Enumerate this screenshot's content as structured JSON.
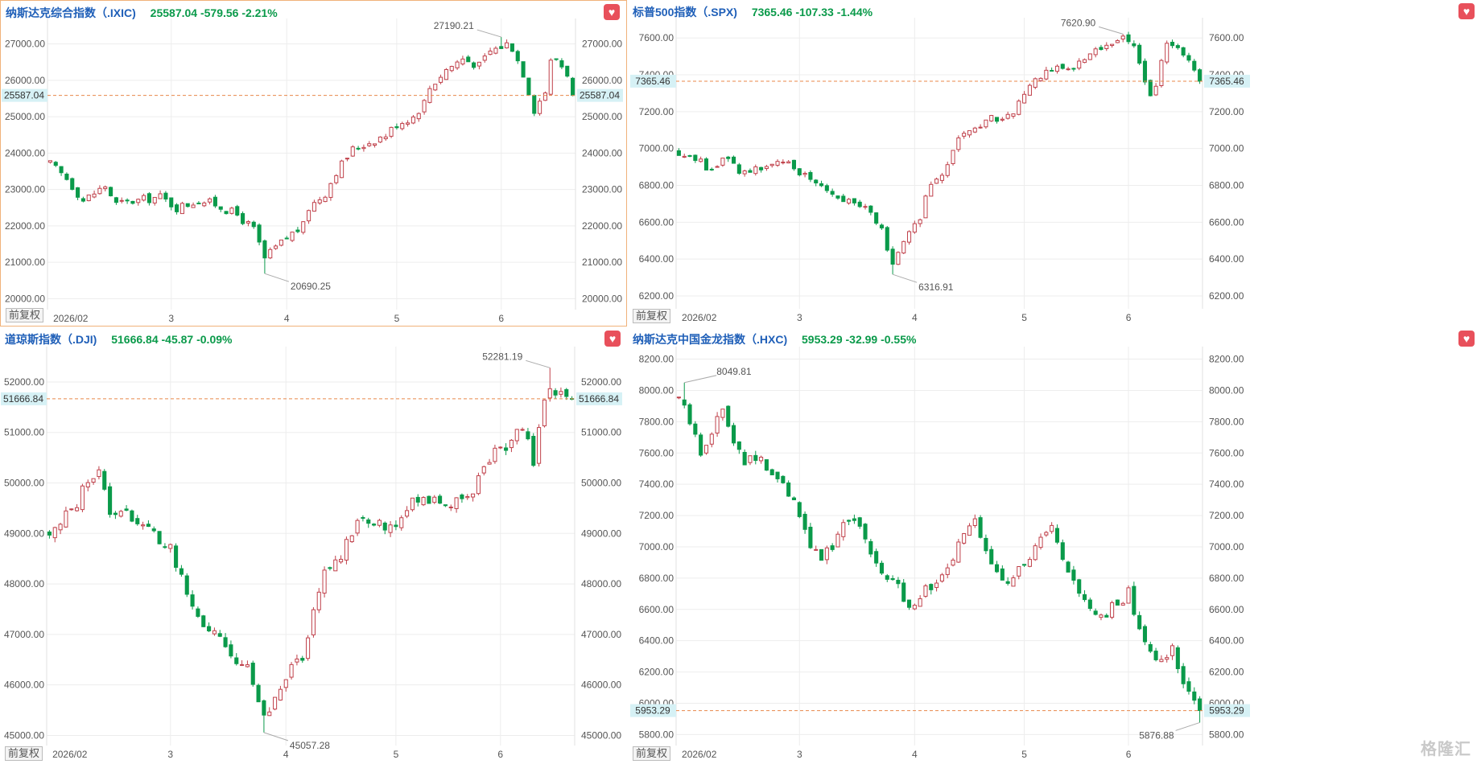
{
  "panels": [
    {
      "name": "纳斯达克综合指数（.IXIC)",
      "quote": "25587.04  -579.56  -2.21%",
      "active": true,
      "adj_label": "前复权",
      "chart_data": {
        "type": "candlestick",
        "ylim": [
          19700,
          27700
        ],
        "yticks": [
          20000,
          21000,
          22000,
          23000,
          24000,
          25000,
          26000,
          27000
        ],
        "ytick_labels": [
          "20000.00",
          "21000.00",
          "22000.00",
          "23000.00",
          "24000.00",
          "25000.00",
          "26000.00",
          "27000.00"
        ],
        "xticks": [
          {
            "i": 2,
            "label": "2026/02"
          },
          {
            "i": 22,
            "label": "3"
          },
          {
            "i": 43,
            "label": "4"
          },
          {
            "i": 63,
            "label": "5"
          },
          {
            "i": 82,
            "label": "6"
          }
        ],
        "last_price": 25587.04,
        "last_label": "25587.04",
        "high": {
          "i": 82,
          "value": 27190.21,
          "label": "27190.21"
        },
        "low": {
          "i": 39,
          "value": 20690.25,
          "label": "20690.25"
        },
        "close_path": [
          [
            0,
            23700
          ],
          [
            3,
            23300
          ],
          [
            6,
            22700
          ],
          [
            10,
            23100
          ],
          [
            12,
            22600
          ],
          [
            16,
            22700
          ],
          [
            20,
            22800
          ],
          [
            23,
            22500
          ],
          [
            27,
            22700
          ],
          [
            30,
            22600
          ],
          [
            34,
            22300
          ],
          [
            37,
            21900
          ],
          [
            39,
            21100
          ],
          [
            41,
            21400
          ],
          [
            44,
            21800
          ],
          [
            46,
            22000
          ],
          [
            47,
            22500
          ],
          [
            50,
            22900
          ],
          [
            52,
            23500
          ],
          [
            55,
            24100
          ],
          [
            58,
            24300
          ],
          [
            61,
            24500
          ],
          [
            63,
            24800
          ],
          [
            66,
            25000
          ],
          [
            68,
            25400
          ],
          [
            69,
            25800
          ],
          [
            72,
            26300
          ],
          [
            75,
            26600
          ],
          [
            78,
            26400
          ],
          [
            80,
            26800
          ],
          [
            83,
            27000
          ],
          [
            84,
            26900
          ],
          [
            86,
            26200
          ],
          [
            87,
            25700
          ],
          [
            88,
            25200
          ],
          [
            90,
            25700
          ],
          [
            91,
            26500
          ],
          [
            92,
            26600
          ],
          [
            94,
            26200
          ],
          [
            95,
            25587
          ]
        ]
      }
    },
    {
      "name": "标普500指数（.SPX)",
      "quote": "7365.46  -107.33  -1.44%",
      "active": false,
      "adj_label": "前复权",
      "chart_data": {
        "type": "candlestick",
        "ylim": [
          6130,
          7710
        ],
        "yticks": [
          6200,
          6400,
          6600,
          6800,
          7000,
          7200,
          7400,
          7600
        ],
        "ytick_labels": [
          "6200.00",
          "6400.00",
          "6600.00",
          "6800.00",
          "7000.00",
          "7200.00",
          "7400.00",
          "7600.00"
        ],
        "xticks": [
          {
            "i": 2,
            "label": "2026/02"
          },
          {
            "i": 22,
            "label": "3"
          },
          {
            "i": 43,
            "label": "4"
          },
          {
            "i": 63,
            "label": "5"
          },
          {
            "i": 82,
            "label": "6"
          }
        ],
        "last_price": 7365.46,
        "last_label": "7365.46",
        "high": {
          "i": 81,
          "value": 7620.9,
          "label": "7620.90"
        },
        "low": {
          "i": 39,
          "value": 6316.91,
          "label": "6316.91"
        },
        "close_path": [
          [
            0,
            6980
          ],
          [
            3,
            6950
          ],
          [
            6,
            6880
          ],
          [
            9,
            6960
          ],
          [
            11,
            6870
          ],
          [
            14,
            6900
          ],
          [
            17,
            6900
          ],
          [
            19,
            6920
          ],
          [
            22,
            6880
          ],
          [
            25,
            6820
          ],
          [
            28,
            6760
          ],
          [
            31,
            6720
          ],
          [
            33,
            6700
          ],
          [
            35,
            6640
          ],
          [
            37,
            6560
          ],
          [
            39,
            6380
          ],
          [
            40,
            6420
          ],
          [
            42,
            6540
          ],
          [
            44,
            6600
          ],
          [
            45,
            6760
          ],
          [
            47,
            6830
          ],
          [
            49,
            6900
          ],
          [
            51,
            7040
          ],
          [
            53,
            7100
          ],
          [
            55,
            7120
          ],
          [
            57,
            7160
          ],
          [
            59,
            7150
          ],
          [
            61,
            7200
          ],
          [
            63,
            7290
          ],
          [
            65,
            7370
          ],
          [
            67,
            7420
          ],
          [
            69,
            7460
          ],
          [
            71,
            7420
          ],
          [
            73,
            7460
          ],
          [
            75,
            7530
          ],
          [
            77,
            7550
          ],
          [
            79,
            7580
          ],
          [
            81,
            7600
          ],
          [
            83,
            7560
          ],
          [
            84,
            7450
          ],
          [
            85,
            7380
          ],
          [
            86,
            7310
          ],
          [
            87,
            7350
          ],
          [
            88,
            7470
          ],
          [
            89,
            7560
          ],
          [
            91,
            7530
          ],
          [
            93,
            7500
          ],
          [
            95,
            7365
          ]
        ]
      }
    },
    {
      "name": "道琼斯指数（.DJI)",
      "quote": "51666.84  -45.87  -0.09%",
      "active": false,
      "adj_label": "前复权",
      "chart_data": {
        "type": "candlestick",
        "ylim": [
          44800,
          52700
        ],
        "yticks": [
          45000,
          46000,
          47000,
          48000,
          49000,
          50000,
          51000,
          52000
        ],
        "ytick_labels": [
          "45000.00",
          "46000.00",
          "47000.00",
          "48000.00",
          "49000.00",
          "50000.00",
          "51000.00",
          "52000.00"
        ],
        "xticks": [
          {
            "i": 2,
            "label": "2026/02"
          },
          {
            "i": 22,
            "label": "3"
          },
          {
            "i": 43,
            "label": "4"
          },
          {
            "i": 63,
            "label": "5"
          },
          {
            "i": 82,
            "label": "6"
          }
        ],
        "last_price": 51666.84,
        "last_label": "51666.84",
        "high": {
          "i": 91,
          "value": 52281.19,
          "label": "52281.19"
        },
        "low": {
          "i": 39,
          "value": 45057.28,
          "label": "45057.28"
        },
        "close_path": [
          [
            0,
            49000
          ],
          [
            2,
            49200
          ],
          [
            5,
            49600
          ],
          [
            7,
            50100
          ],
          [
            9,
            50200
          ],
          [
            11,
            49400
          ],
          [
            14,
            49500
          ],
          [
            16,
            49200
          ],
          [
            19,
            49000
          ],
          [
            22,
            48700
          ],
          [
            24,
            48100
          ],
          [
            26,
            47500
          ],
          [
            28,
            47200
          ],
          [
            30,
            47000
          ],
          [
            32,
            46700
          ],
          [
            34,
            46500
          ],
          [
            36,
            46300
          ],
          [
            38,
            45700
          ],
          [
            39,
            45500
          ],
          [
            40,
            45400
          ],
          [
            42,
            45900
          ],
          [
            44,
            46300
          ],
          [
            46,
            46500
          ],
          [
            48,
            47600
          ],
          [
            50,
            48200
          ],
          [
            53,
            48600
          ],
          [
            56,
            49300
          ],
          [
            59,
            49200
          ],
          [
            62,
            49100
          ],
          [
            65,
            49500
          ],
          [
            67,
            49700
          ],
          [
            70,
            49700
          ],
          [
            73,
            49600
          ],
          [
            75,
            49600
          ],
          [
            77,
            49800
          ],
          [
            79,
            50300
          ],
          [
            81,
            50600
          ],
          [
            83,
            50700
          ],
          [
            85,
            51000
          ],
          [
            87,
            50900
          ],
          [
            88,
            50400
          ],
          [
            89,
            51200
          ],
          [
            90,
            51700
          ],
          [
            92,
            51800
          ],
          [
            94,
            51700
          ],
          [
            95,
            51667
          ]
        ]
      }
    },
    {
      "name": "纳斯达克中国金龙指数（.HXC)",
      "quote": "5953.29  -32.99  -0.55%",
      "active": false,
      "adj_label": "前复权",
      "chart_data": {
        "type": "candlestick",
        "ylim": [
          5730,
          8280
        ],
        "yticks": [
          5800,
          6000,
          6200,
          6400,
          6600,
          6800,
          7000,
          7200,
          7400,
          7600,
          7800,
          8000,
          8200
        ],
        "ytick_labels": [
          "5800.00",
          "6000.00",
          "6200.00",
          "6400.00",
          "6600.00",
          "6800.00",
          "7000.00",
          "7200.00",
          "7400.00",
          "7600.00",
          "7800.00",
          "8000.00",
          "8200.00"
        ],
        "xticks": [
          {
            "i": 2,
            "label": "2026/02"
          },
          {
            "i": 22,
            "label": "3"
          },
          {
            "i": 43,
            "label": "4"
          },
          {
            "i": 63,
            "label": "5"
          },
          {
            "i": 82,
            "label": "6"
          }
        ],
        "last_price": 5953.29,
        "last_label": "5953.29",
        "high": {
          "i": 1,
          "value": 8049.81,
          "label": "8049.81"
        },
        "low": {
          "i": 95,
          "value": 5876.88,
          "label": "5876.88"
        },
        "close_path": [
          [
            0,
            7950
          ],
          [
            2,
            7800
          ],
          [
            4,
            7600
          ],
          [
            6,
            7750
          ],
          [
            8,
            7870
          ],
          [
            10,
            7700
          ],
          [
            12,
            7560
          ],
          [
            14,
            7580
          ],
          [
            16,
            7500
          ],
          [
            18,
            7420
          ],
          [
            20,
            7350
          ],
          [
            22,
            7180
          ],
          [
            24,
            7000
          ],
          [
            26,
            6950
          ],
          [
            28,
            7000
          ],
          [
            30,
            7150
          ],
          [
            32,
            7200
          ],
          [
            34,
            7050
          ],
          [
            36,
            6900
          ],
          [
            38,
            6780
          ],
          [
            40,
            6750
          ],
          [
            42,
            6620
          ],
          [
            44,
            6700
          ],
          [
            46,
            6750
          ],
          [
            48,
            6800
          ],
          [
            50,
            6900
          ],
          [
            52,
            7100
          ],
          [
            54,
            7150
          ],
          [
            56,
            6950
          ],
          [
            58,
            6850
          ],
          [
            60,
            6800
          ],
          [
            62,
            6850
          ],
          [
            64,
            6900
          ],
          [
            66,
            7050
          ],
          [
            68,
            7100
          ],
          [
            70,
            6900
          ],
          [
            72,
            6750
          ],
          [
            74,
            6650
          ],
          [
            76,
            6550
          ],
          [
            78,
            6560
          ],
          [
            80,
            6650
          ],
          [
            82,
            6700
          ],
          [
            84,
            6500
          ],
          [
            86,
            6300
          ],
          [
            88,
            6250
          ],
          [
            90,
            6350
          ],
          [
            91,
            6250
          ],
          [
            92,
            6150
          ],
          [
            93,
            6080
          ],
          [
            94,
            6000
          ],
          [
            95,
            5953
          ]
        ]
      }
    }
  ],
  "colors": {
    "up": "#c0404a",
    "down": "#0a9a4a",
    "ref": "#e8874a",
    "price_bg": "#d6f1f5",
    "grid": "#ededed",
    "axis_text": "#555555"
  },
  "watermark": "格隆汇"
}
